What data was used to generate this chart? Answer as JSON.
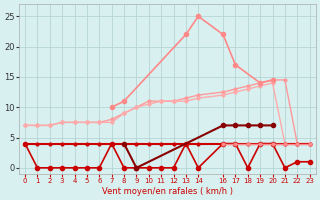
{
  "x": [
    0,
    1,
    2,
    3,
    4,
    5,
    6,
    7,
    8,
    9,
    10,
    11,
    12,
    13,
    14,
    16,
    17,
    18,
    19,
    20,
    21,
    22,
    23
  ],
  "line1": [
    7,
    7,
    7,
    7.5,
    7.5,
    7.5,
    7.5,
    8,
    9,
    10,
    11,
    11,
    11,
    11.5,
    12,
    12.5,
    13,
    13.5,
    14,
    14.5,
    14.5,
    4,
    4
  ],
  "line2": [
    7,
    7,
    7,
    7.5,
    7.5,
    7.5,
    7.5,
    7.5,
    9,
    10,
    10.5,
    11,
    11,
    11,
    11.5,
    12,
    12.5,
    13,
    13.5,
    14,
    4,
    4,
    4
  ],
  "line3": [
    null,
    null,
    null,
    null,
    null,
    null,
    null,
    10,
    11,
    null,
    null,
    null,
    null,
    22,
    25,
    22,
    17,
    null,
    14,
    14.5,
    null,
    null,
    null
  ],
  "line4": [
    4,
    0,
    0,
    0,
    0,
    0,
    0,
    4,
    0,
    0,
    0,
    0,
    0,
    4,
    0,
    4,
    4,
    0,
    4,
    4,
    0,
    1,
    1
  ],
  "line5": [
    4,
    4,
    4,
    4,
    4,
    4,
    4,
    4,
    4,
    4,
    4,
    4,
    4,
    4,
    4,
    4,
    4,
    4,
    4,
    4,
    4,
    4,
    4
  ],
  "line6": [
    null,
    null,
    null,
    null,
    null,
    null,
    null,
    null,
    4,
    0,
    null,
    null,
    null,
    null,
    null,
    7,
    7,
    7,
    7,
    7,
    null,
    null,
    null
  ],
  "line7": [
    null,
    null,
    null,
    null,
    null,
    null,
    null,
    null,
    null,
    null,
    null,
    null,
    null,
    null,
    null,
    4,
    4,
    4,
    4,
    4,
    4,
    4,
    4
  ],
  "background": "#d8f0f0",
  "grid_color": "#b0d0d0",
  "line1_color": "#ff9999",
  "line2_color": "#ffaaaa",
  "line3_color": "#ff8888",
  "line4_color": "#cc0000",
  "line5_color": "#cc0000",
  "line6_color": "#880000",
  "line7_color": "#ff8888",
  "xlabel": "Vent moyen/en rafales ( km/h )",
  "ylabel": "",
  "ylim": [
    -1,
    27
  ],
  "xlim": [
    -0.5,
    23.5
  ],
  "yticks": [
    0,
    5,
    10,
    15,
    20,
    25
  ],
  "xticks": [
    0,
    1,
    2,
    3,
    4,
    5,
    6,
    7,
    8,
    9,
    10,
    11,
    12,
    13,
    14,
    16,
    17,
    18,
    19,
    20,
    21,
    22,
    23
  ]
}
